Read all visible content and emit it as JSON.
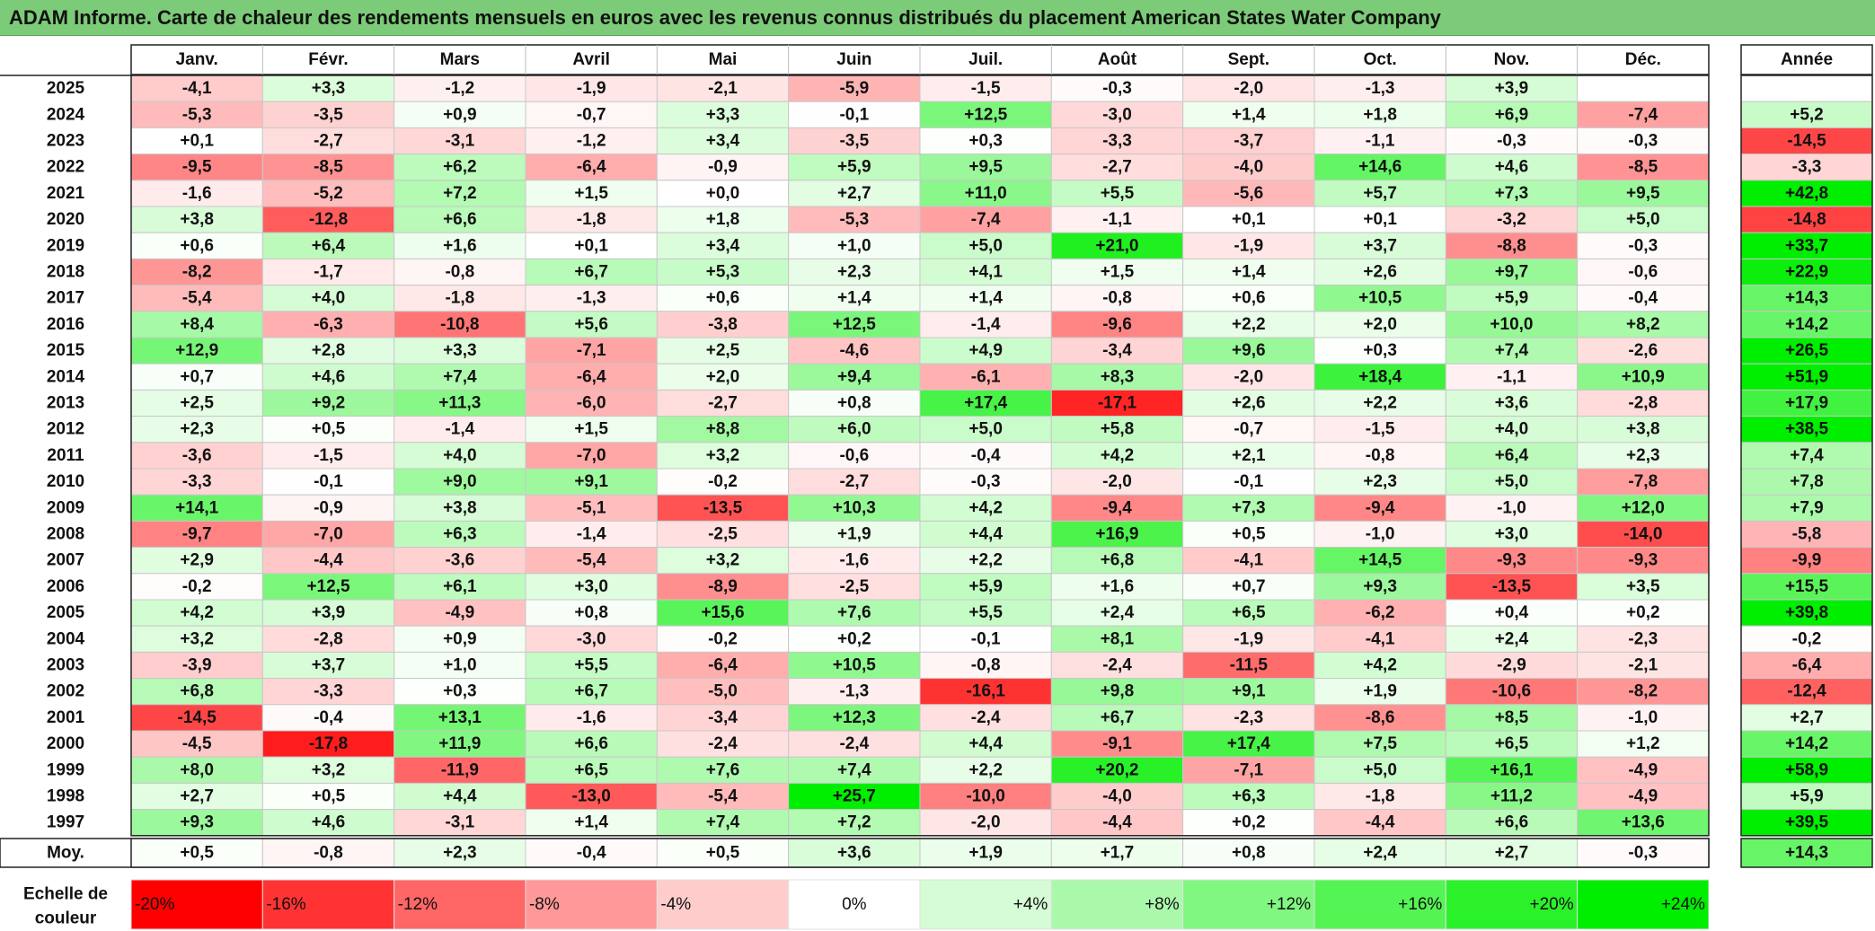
{
  "title": "ADAM Informe. Carte de chaleur des rendements mensuels en euros avec les revenus connus distribués du placement American States Water Company",
  "chart_data": {
    "type": "heatmap",
    "month_headers": [
      "Janv.",
      "Févr.",
      "Mars",
      "Avril",
      "Mai",
      "Juin",
      "Juil.",
      "Août",
      "Sept.",
      "Oct.",
      "Nov.",
      "Déc."
    ],
    "year_header": "Année",
    "rows": [
      {
        "year": "2025",
        "months": [
          -4.1,
          3.3,
          -1.2,
          -1.9,
          -2.1,
          -5.9,
          -1.5,
          -0.3,
          -2.0,
          -1.3,
          3.9,
          null
        ],
        "annual": null
      },
      {
        "year": "2024",
        "months": [
          -5.3,
          -3.5,
          0.9,
          -0.7,
          3.3,
          -0.1,
          12.5,
          -3.0,
          1.4,
          1.8,
          6.9,
          -7.4
        ],
        "annual": 5.2
      },
      {
        "year": "2023",
        "months": [
          0.1,
          -2.7,
          -3.1,
          -1.2,
          3.4,
          -3.5,
          0.3,
          -3.3,
          -3.7,
          -1.1,
          -0.3,
          -0.3
        ],
        "annual": -14.5
      },
      {
        "year": "2022",
        "months": [
          -9.5,
          -8.5,
          6.2,
          -6.4,
          -0.9,
          5.9,
          9.5,
          -2.7,
          -4.0,
          14.6,
          4.6,
          -8.5
        ],
        "annual": -3.3
      },
      {
        "year": "2021",
        "months": [
          -1.6,
          -5.2,
          7.2,
          1.5,
          0.0,
          2.7,
          11.0,
          5.5,
          -5.6,
          5.7,
          7.3,
          9.5
        ],
        "annual": 42.8
      },
      {
        "year": "2020",
        "months": [
          3.8,
          -12.8,
          6.6,
          -1.8,
          1.8,
          -5.3,
          -7.4,
          -1.1,
          0.1,
          0.1,
          -3.2,
          5.0
        ],
        "annual": -14.8
      },
      {
        "year": "2019",
        "months": [
          0.6,
          6.4,
          1.6,
          0.1,
          3.4,
          1.0,
          5.0,
          21.0,
          -1.9,
          3.7,
          -8.8,
          -0.3
        ],
        "annual": 33.7
      },
      {
        "year": "2018",
        "months": [
          -8.2,
          -1.7,
          -0.8,
          6.7,
          5.3,
          2.3,
          4.1,
          1.5,
          1.4,
          2.6,
          9.7,
          -0.6
        ],
        "annual": 22.9
      },
      {
        "year": "2017",
        "months": [
          -5.4,
          4.0,
          -1.8,
          -1.3,
          0.6,
          1.4,
          1.4,
          -0.8,
          0.6,
          10.5,
          5.9,
          -0.4
        ],
        "annual": 14.3
      },
      {
        "year": "2016",
        "months": [
          8.4,
          -6.3,
          -10.8,
          5.6,
          -3.8,
          12.5,
          -1.4,
          -9.6,
          2.2,
          2.0,
          10.0,
          8.2
        ],
        "annual": 14.2
      },
      {
        "year": "2015",
        "months": [
          12.9,
          2.8,
          3.3,
          -7.1,
          2.5,
          -4.6,
          4.9,
          -3.4,
          9.6,
          0.3,
          7.4,
          -2.6
        ],
        "annual": 26.5
      },
      {
        "year": "2014",
        "months": [
          0.7,
          4.6,
          7.4,
          -6.4,
          2.0,
          9.4,
          -6.1,
          8.3,
          -2.0,
          18.4,
          -1.1,
          10.9
        ],
        "annual": 51.9
      },
      {
        "year": "2013",
        "months": [
          2.5,
          9.2,
          11.3,
          -6.0,
          -2.7,
          0.8,
          17.4,
          -17.1,
          2.6,
          2.2,
          3.6,
          -2.8
        ],
        "annual": 17.9
      },
      {
        "year": "2012",
        "months": [
          2.3,
          0.5,
          -1.4,
          1.5,
          8.8,
          6.0,
          5.0,
          5.8,
          -0.7,
          -1.5,
          4.0,
          3.8
        ],
        "annual": 38.5
      },
      {
        "year": "2011",
        "months": [
          -3.6,
          -1.5,
          4.0,
          -7.0,
          3.2,
          -0.6,
          -0.4,
          4.2,
          2.1,
          -0.8,
          6.4,
          2.3
        ],
        "annual": 7.4
      },
      {
        "year": "2010",
        "months": [
          -3.3,
          -0.1,
          9.0,
          9.1,
          -0.2,
          -2.7,
          -0.3,
          -2.0,
          -0.1,
          2.3,
          5.0,
          -7.8
        ],
        "annual": 7.8
      },
      {
        "year": "2009",
        "months": [
          14.1,
          -0.9,
          3.8,
          -5.1,
          -13.5,
          10.3,
          4.2,
          -9.4,
          7.3,
          -9.4,
          -1.0,
          12.0
        ],
        "annual": 7.9
      },
      {
        "year": "2008",
        "months": [
          -9.7,
          -7.0,
          6.3,
          -1.4,
          -2.5,
          1.9,
          4.4,
          16.9,
          0.5,
          -1.0,
          3.0,
          -14.0
        ],
        "annual": -5.8
      },
      {
        "year": "2007",
        "months": [
          2.9,
          -4.4,
          -3.6,
          -5.4,
          3.2,
          -1.6,
          2.2,
          6.8,
          -4.1,
          14.5,
          -9.3,
          -9.3
        ],
        "annual": -9.9
      },
      {
        "year": "2006",
        "months": [
          -0.2,
          12.5,
          6.1,
          3.0,
          -8.9,
          -2.5,
          5.9,
          1.6,
          0.7,
          9.3,
          -13.5,
          3.5
        ],
        "annual": 15.5
      },
      {
        "year": "2005",
        "months": [
          4.2,
          3.9,
          -4.9,
          0.8,
          15.6,
          7.6,
          5.5,
          2.4,
          6.5,
          -6.2,
          0.4,
          0.2
        ],
        "annual": 39.8
      },
      {
        "year": "2004",
        "months": [
          3.2,
          -2.8,
          0.9,
          -3.0,
          -0.2,
          0.2,
          -0.1,
          8.1,
          -1.9,
          -4.1,
          2.4,
          -2.3
        ],
        "annual": -0.2
      },
      {
        "year": "2003",
        "months": [
          -3.9,
          3.7,
          1.0,
          5.5,
          -6.4,
          10.5,
          -0.8,
          -2.4,
          -11.5,
          4.2,
          -2.9,
          -2.1
        ],
        "annual": -6.4
      },
      {
        "year": "2002",
        "months": [
          6.8,
          -3.3,
          0.3,
          6.7,
          -5.0,
          -1.3,
          -16.1,
          9.8,
          9.1,
          1.9,
          -10.6,
          -8.2
        ],
        "annual": -12.4
      },
      {
        "year": "2001",
        "months": [
          -14.5,
          -0.4,
          13.1,
          -1.6,
          -3.4,
          12.3,
          -2.4,
          6.7,
          -2.3,
          -8.6,
          8.5,
          -1.0
        ],
        "annual": 2.7
      },
      {
        "year": "2000",
        "months": [
          -4.5,
          -17.8,
          11.9,
          6.6,
          -2.4,
          -2.4,
          4.4,
          -9.1,
          17.4,
          7.5,
          6.5,
          1.2
        ],
        "annual": 14.2
      },
      {
        "year": "1999",
        "months": [
          8.0,
          3.2,
          -11.9,
          6.5,
          7.6,
          7.4,
          2.2,
          20.2,
          -7.1,
          5.0,
          16.1,
          -4.9
        ],
        "annual": 58.9
      },
      {
        "year": "1998",
        "months": [
          2.7,
          0.5,
          4.4,
          -13.0,
          -5.4,
          25.7,
          -10.0,
          -4.0,
          6.3,
          -1.8,
          11.2,
          -4.9
        ],
        "annual": 5.9
      },
      {
        "year": "1997",
        "months": [
          9.3,
          4.6,
          -3.1,
          1.4,
          7.4,
          7.2,
          -2.0,
          -4.4,
          0.2,
          -4.4,
          6.6,
          13.6
        ],
        "annual": 39.5
      }
    ],
    "average_row": {
      "label": "Moy.",
      "months": [
        0.5,
        -0.8,
        2.3,
        -0.4,
        0.5,
        3.6,
        1.9,
        1.7,
        0.8,
        2.4,
        2.7,
        -0.3
      ],
      "annual": 14.3
    },
    "color_scale": {
      "label_line1": "Echelle de",
      "label_line2": "couleur",
      "stops": [
        -20,
        -16,
        -12,
        -8,
        -4,
        0,
        4,
        8,
        12,
        16,
        20,
        24
      ],
      "stop_labels": [
        "-20%",
        "-16%",
        "-12%",
        "-8%",
        "-4%",
        "0%",
        "+4%",
        "+8%",
        "+12%",
        "+16%",
        "+20%",
        "+24%"
      ],
      "negative_color": "#ff0000",
      "neutral_color": "#ffffff",
      "positive_color": "#00ee00"
    }
  }
}
